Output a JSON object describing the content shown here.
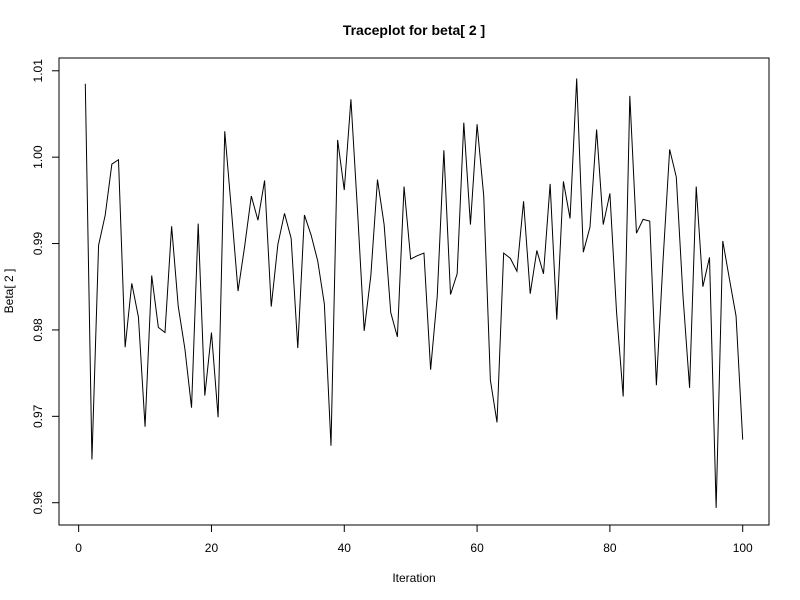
{
  "chart_data": {
    "type": "line",
    "title": "Traceplot for beta[ 2 ]",
    "xlabel": "Iteration",
    "ylabel": "Beta[ 2 ]",
    "xlim": [
      -2.96,
      103.96
    ],
    "ylim": [
      0.95742,
      1.01148
    ],
    "xticks": [
      0,
      20,
      40,
      60,
      80,
      100
    ],
    "yticks": [
      0.96,
      0.97,
      0.98,
      0.99,
      1.0,
      1.01
    ],
    "ytick_labels": [
      "0.96",
      "0.97",
      "0.98",
      "0.99",
      "1.00",
      "1.01"
    ],
    "grid": false,
    "series": [
      {
        "color": "#000000",
        "x": [
          1,
          2,
          3,
          4,
          5,
          6,
          7,
          8,
          9,
          10,
          11,
          12,
          13,
          14,
          15,
          16,
          17,
          18,
          19,
          20,
          21,
          22,
          23,
          24,
          25,
          26,
          27,
          28,
          29,
          30,
          31,
          32,
          33,
          34,
          35,
          36,
          37,
          38,
          39,
          40,
          41,
          42,
          43,
          44,
          45,
          46,
          47,
          48,
          49,
          50,
          51,
          52,
          53,
          54,
          55,
          56,
          57,
          58,
          59,
          60,
          61,
          62,
          63,
          64,
          65,
          66,
          67,
          68,
          69,
          70,
          71,
          72,
          73,
          74,
          75,
          76,
          77,
          78,
          79,
          80,
          81,
          82,
          83,
          84,
          85,
          86,
          87,
          88,
          89,
          90,
          91,
          92,
          93,
          94,
          95,
          96,
          97,
          98,
          99,
          100
        ],
        "values": [
          1.0085,
          0.965,
          0.9898,
          0.9933,
          0.9992,
          0.9997,
          0.978,
          0.9854,
          0.9815,
          0.9688,
          0.9863,
          0.9803,
          0.9797,
          0.992,
          0.9827,
          0.9778,
          0.971,
          0.9923,
          0.9724,
          0.9797,
          0.9699,
          1.003,
          0.9939,
          0.9845,
          0.9897,
          0.9955,
          0.9927,
          0.9973,
          0.9827,
          0.9899,
          0.9935,
          0.9906,
          0.9779,
          0.9933,
          0.991,
          0.988,
          0.983,
          0.9666,
          1.002,
          0.9962,
          1.0067,
          0.9937,
          0.9799,
          0.9863,
          0.9974,
          0.9922,
          0.982,
          0.9792,
          0.9966,
          0.9882,
          0.9886,
          0.9889,
          0.9754,
          0.9839,
          1.0008,
          0.9841,
          0.9865,
          1.004,
          0.9922,
          1.0038,
          0.9955,
          0.9742,
          0.9693,
          0.9889,
          0.9883,
          0.9868,
          0.9949,
          0.9842,
          0.9892,
          0.9865,
          0.9969,
          0.9812,
          0.9972,
          0.9929,
          1.0091,
          0.989,
          0.9919,
          1.0032,
          0.9922,
          0.9958,
          0.9821,
          0.9723,
          1.0071,
          0.9912,
          0.9928,
          0.9926,
          0.9736,
          0.988,
          1.0009,
          0.9977,
          0.984,
          0.9733,
          0.9966,
          0.985,
          0.9884,
          0.9594,
          0.9903,
          0.9859,
          0.9816,
          0.9673
        ]
      }
    ]
  }
}
